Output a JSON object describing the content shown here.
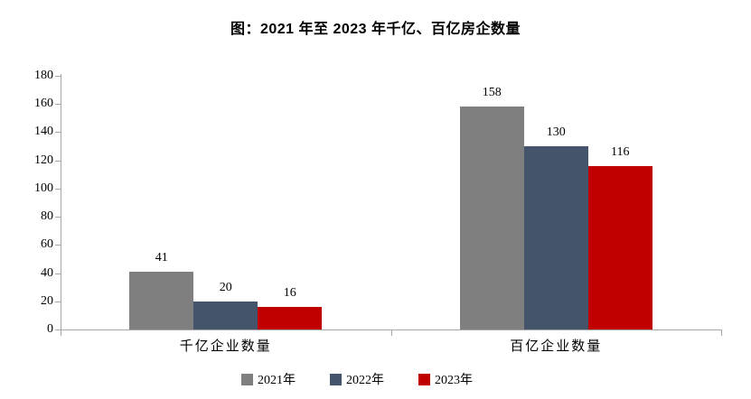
{
  "title": "图：2021 年至 2023 年千亿、百亿房企数量",
  "chart_data": {
    "type": "bar",
    "categories": [
      "千亿企业数量",
      "百亿企业数量"
    ],
    "series": [
      {
        "name": "2021年",
        "color": "#7F7F7F",
        "values": [
          41,
          158
        ]
      },
      {
        "name": "2022年",
        "color": "#44546A",
        "values": [
          20,
          130
        ]
      },
      {
        "name": "2023年",
        "color": "#C00000",
        "values": [
          16,
          116
        ]
      }
    ],
    "ylim": [
      0,
      180
    ],
    "ytick_step": 20,
    "ytick_labels": [
      180,
      160,
      140,
      120,
      100,
      80,
      60,
      40,
      20,
      0
    ],
    "grid": false,
    "data_labels": true,
    "legend_position": "bottom",
    "axis_color": "#A6A6A6",
    "background": "#FFFFFF"
  }
}
